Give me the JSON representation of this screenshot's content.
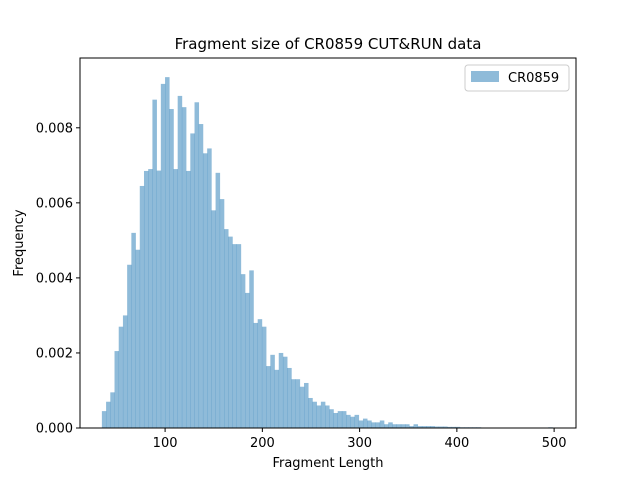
{
  "chart_data": {
    "type": "bar",
    "title": "Fragment size of CR0859 CUT&RUN data",
    "xlabel": "Fragment Length",
    "ylabel": "Frequency",
    "xlim": [
      12.5,
      522.5
    ],
    "ylim": [
      0,
      0.00986
    ],
    "xticks": [
      100,
      200,
      300,
      400,
      500
    ],
    "xtick_labels": [
      "100",
      "200",
      "300",
      "400",
      "500"
    ],
    "yticks": [
      0,
      0.002,
      0.004,
      0.006,
      0.008
    ],
    "ytick_labels": [
      "0.000",
      "0.002",
      "0.004",
      "0.006",
      "0.008"
    ],
    "legend": {
      "position": "top-right"
    },
    "bar_color": "#1f77b4",
    "bar_opacity": 0.5,
    "bin_start": 35,
    "bin_width": 4.33,
    "series": [
      {
        "name": "CR0859",
        "values": [
          0.00045,
          0.0007,
          0.00095,
          0.00205,
          0.0027,
          0.003,
          0.00435,
          0.0052,
          0.00475,
          0.00645,
          0.00685,
          0.0069,
          0.00875,
          0.00686,
          0.00917,
          0.00935,
          0.0085,
          0.0069,
          0.00885,
          0.00855,
          0.00685,
          0.00785,
          0.00868,
          0.0081,
          0.00732,
          0.00745,
          0.0058,
          0.0068,
          0.0061,
          0.0053,
          0.0051,
          0.0049,
          0.0049,
          0.0041,
          0.0036,
          0.0042,
          0.0028,
          0.0029,
          0.0027,
          0.00165,
          0.00195,
          0.00155,
          0.002,
          0.0019,
          0.0016,
          0.0013,
          0.0013,
          0.0011,
          0.0012,
          0.0008,
          0.0007,
          0.0006,
          0.0007,
          0.0006,
          0.0005,
          0.0004,
          0.00045,
          0.00045,
          0.00035,
          0.0003,
          0.00035,
          0.0002,
          0.00025,
          0.0002,
          0.00015,
          0.00015,
          0.0002,
          0.0001,
          0.00015,
          0.0001,
          0.0001,
          0.0001,
          0.0001,
          5e-05,
          0.0001,
          5e-05,
          5e-05,
          5e-05,
          5e-05,
          4e-05,
          4e-05,
          4e-05,
          3e-05,
          3e-05,
          3e-05,
          2e-05,
          2e-05,
          2e-05,
          2e-05,
          2e-05,
          1e-05,
          1e-05,
          1e-05,
          1e-05,
          1e-05,
          1e-05,
          1e-05,
          1e-05,
          1e-05,
          1e-05,
          1e-05,
          1e-05,
          1e-05,
          1e-05,
          1e-05,
          1e-05,
          2e-05,
          1e-05
        ]
      }
    ]
  }
}
